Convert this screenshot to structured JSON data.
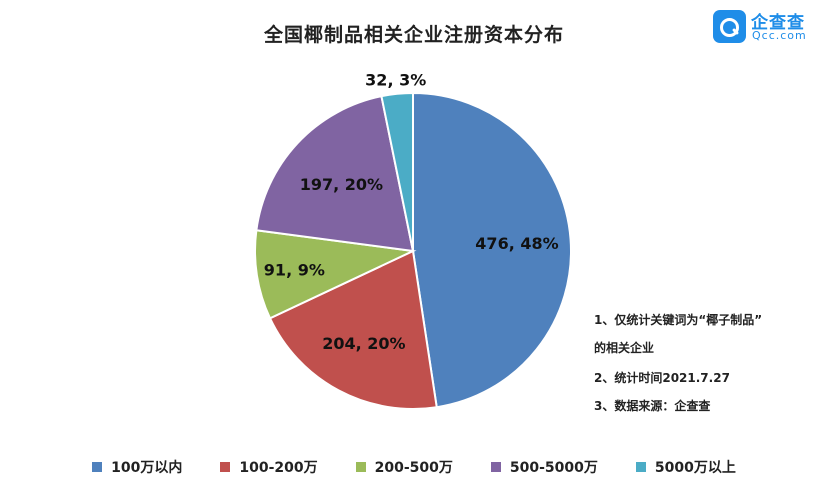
{
  "brand": {
    "name": "企查查",
    "sub": "Qcc.com",
    "color": "#1f8de8"
  },
  "notes": [
    "1、仅统计关键词为“椰子制品”",
    "的相关企业",
    "2、统计时间2021.7.27",
    "3、数据来源：企查查"
  ],
  "chart_data": {
    "type": "pie",
    "title": "全国椰制品相关企业注册资本分布",
    "legend_position": "bottom",
    "start_angle_deg": 0,
    "direction": "clockwise",
    "slices": [
      {
        "category": "100万以内",
        "value": 476,
        "percent": "48%",
        "label": "476, 48%",
        "color": "#4f81bd"
      },
      {
        "category": "100-200万",
        "value": 204,
        "percent": "20%",
        "label": "204, 20%",
        "color": "#c0504d"
      },
      {
        "category": "200-500万",
        "value": 91,
        "percent": "9%",
        "label": "91, 9%",
        "color": "#9bbb59"
      },
      {
        "category": "500-5000万",
        "value": 197,
        "percent": "20%",
        "label": "197, 20%",
        "color": "#8064a2"
      },
      {
        "category": "5000万以上",
        "value": 32,
        "percent": "3%",
        "label": "32, 3%",
        "color": "#4bacc6"
      }
    ]
  }
}
